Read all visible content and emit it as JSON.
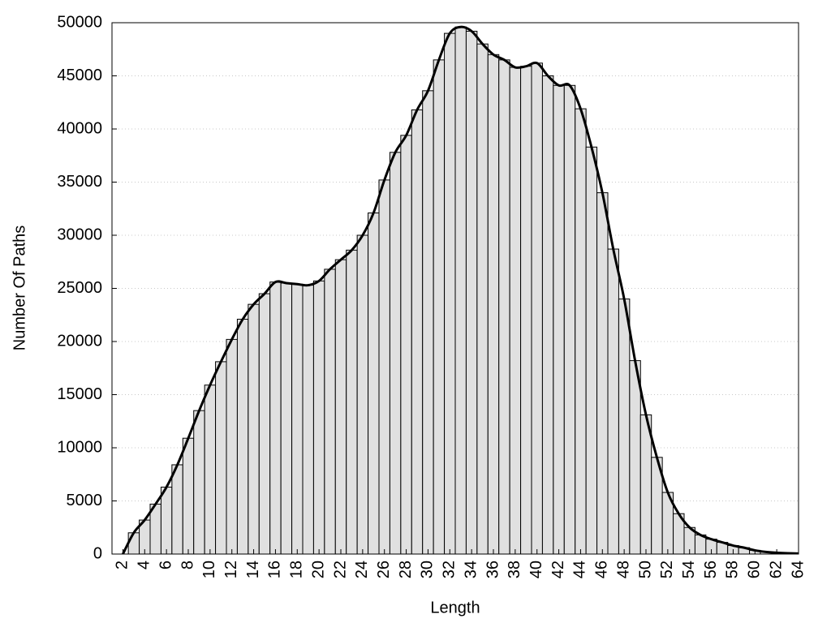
{
  "chart_data": {
    "type": "bar",
    "xlabel": "Length",
    "ylabel": "Number Of Paths",
    "x": [
      2,
      3,
      4,
      5,
      6,
      7,
      8,
      9,
      10,
      11,
      12,
      13,
      14,
      15,
      16,
      17,
      18,
      19,
      20,
      21,
      22,
      23,
      24,
      25,
      26,
      27,
      28,
      29,
      30,
      31,
      32,
      33,
      34,
      35,
      36,
      37,
      38,
      39,
      40,
      41,
      42,
      43,
      44,
      45,
      46,
      47,
      48,
      49,
      50,
      51,
      52,
      53,
      54,
      55,
      56,
      57,
      58,
      59,
      60,
      61,
      62,
      63,
      64
    ],
    "values": [
      0,
      2000,
      3200,
      4700,
      6300,
      8400,
      10900,
      13500,
      15900,
      18100,
      20200,
      22100,
      23500,
      24500,
      25600,
      25500,
      25400,
      25300,
      25700,
      26800,
      27700,
      28600,
      30000,
      32100,
      35200,
      37800,
      39400,
      41800,
      43600,
      46500,
      49000,
      49600,
      49200,
      48000,
      47000,
      46500,
      45800,
      45900,
      46200,
      45000,
      44100,
      44100,
      41900,
      38300,
      34000,
      28700,
      24000,
      18200,
      13100,
      9100,
      5800,
      3800,
      2500,
      1800,
      1400,
      1100,
      800,
      600,
      350,
      200,
      120,
      80,
      50
    ],
    "color": "#e0e0e0",
    "line_color": "#000000",
    "xlim": [
      1,
      64
    ],
    "ylim": [
      0,
      50000
    ],
    "xticks": [
      2,
      4,
      6,
      8,
      10,
      12,
      14,
      16,
      18,
      20,
      22,
      24,
      26,
      28,
      30,
      32,
      34,
      36,
      38,
      40,
      42,
      44,
      46,
      48,
      50,
      52,
      54,
      56,
      58,
      60,
      62,
      64
    ],
    "yticks": [
      0,
      5000,
      10000,
      15000,
      20000,
      25000,
      30000,
      35000,
      40000,
      45000,
      50000
    ],
    "grid": true
  }
}
